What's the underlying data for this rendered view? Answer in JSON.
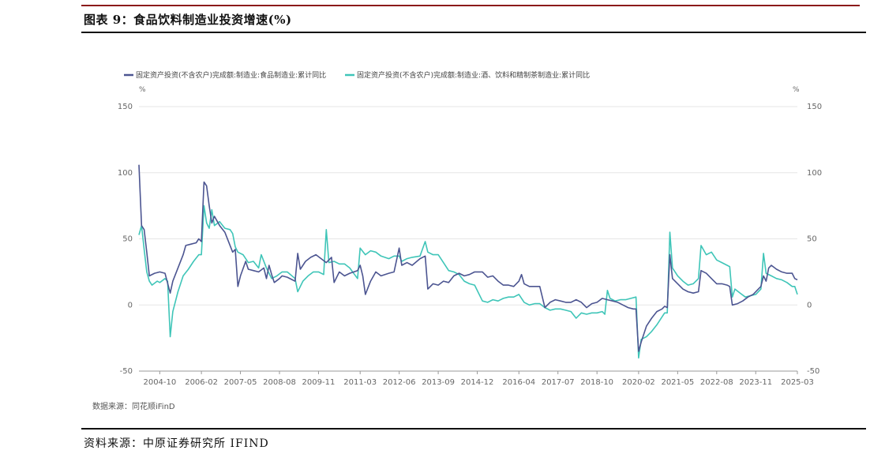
{
  "figure": {
    "title": "图表 9：食品饮料制造业投资增速(%)",
    "chart_source": "数据来源：同花顺iFinD",
    "footer_source": "资料来源：中原证券研究所 IFIND"
  },
  "colors": {
    "series1": "#4c5591",
    "series2": "#3fc5b8",
    "accent": "#8b1a1a",
    "axis_text": "#666666",
    "grid": "#e6e6e6"
  },
  "chart_data": {
    "type": "line",
    "title": "",
    "ylabel_left": "%",
    "ylabel_right": "%",
    "ylim": [
      -50,
      150
    ],
    "yticks": [
      -50,
      0,
      50,
      100,
      150
    ],
    "legend_position": "top-left",
    "grid": true,
    "x_tick_labels": [
      "2004-10",
      "2006-02",
      "2007-05",
      "2008-08",
      "2009-11",
      "2011-03",
      "2012-06",
      "2013-09",
      "2014-12",
      "2016-04",
      "2017-07",
      "2018-10",
      "2020-02",
      "2021-05",
      "2022-08",
      "2023-11",
      "2025-03"
    ],
    "x_range": [
      "2004-02",
      "2025-03"
    ],
    "series": [
      {
        "name": "固定资产投资(不含农户)完成额:制造业:食品制造业:累计同比",
        "points": [
          [
            "2004-02",
            106
          ],
          [
            "2004-03",
            60
          ],
          [
            "2004-04",
            57
          ],
          [
            "2004-05",
            40
          ],
          [
            "2004-06",
            22
          ],
          [
            "2004-08",
            24
          ],
          [
            "2004-10",
            25
          ],
          [
            "2004-12",
            24
          ],
          [
            "2005-02",
            9
          ],
          [
            "2005-03",
            18
          ],
          [
            "2005-05",
            28
          ],
          [
            "2005-07",
            38
          ],
          [
            "2005-08",
            45
          ],
          [
            "2005-10",
            46
          ],
          [
            "2005-12",
            47
          ],
          [
            "2006-01",
            50
          ],
          [
            "2006-02",
            48
          ],
          [
            "2006-03",
            93
          ],
          [
            "2006-04",
            90
          ],
          [
            "2006-05",
            75
          ],
          [
            "2006-06",
            62
          ],
          [
            "2006-07",
            67
          ],
          [
            "2006-09",
            60
          ],
          [
            "2006-11",
            55
          ],
          [
            "2007-01",
            45
          ],
          [
            "2007-02",
            40
          ],
          [
            "2007-03",
            42
          ],
          [
            "2007-04",
            14
          ],
          [
            "2007-05",
            22
          ],
          [
            "2007-07",
            33
          ],
          [
            "2007-08",
            27
          ],
          [
            "2007-10",
            26
          ],
          [
            "2007-12",
            25
          ],
          [
            "2008-02",
            28
          ],
          [
            "2008-03",
            20
          ],
          [
            "2008-04",
            30
          ],
          [
            "2008-05",
            23
          ],
          [
            "2008-06",
            17
          ],
          [
            "2008-08",
            20
          ],
          [
            "2008-09",
            22
          ],
          [
            "2008-11",
            21
          ],
          [
            "2009-02",
            18
          ],
          [
            "2009-03",
            39
          ],
          [
            "2009-04",
            27
          ],
          [
            "2009-06",
            33
          ],
          [
            "2009-08",
            36
          ],
          [
            "2009-10",
            38
          ],
          [
            "2009-12",
            35
          ],
          [
            "2010-02",
            32
          ],
          [
            "2010-04",
            36
          ],
          [
            "2010-05",
            17
          ],
          [
            "2010-07",
            25
          ],
          [
            "2010-09",
            22
          ],
          [
            "2010-11",
            24
          ],
          [
            "2011-02",
            26
          ],
          [
            "2011-03",
            30
          ],
          [
            "2011-04",
            22
          ],
          [
            "2011-05",
            8
          ],
          [
            "2011-07",
            18
          ],
          [
            "2011-09",
            25
          ],
          [
            "2011-11",
            22
          ],
          [
            "2012-02",
            24
          ],
          [
            "2012-04",
            25
          ],
          [
            "2012-06",
            43
          ],
          [
            "2012-07",
            30
          ],
          [
            "2012-09",
            32
          ],
          [
            "2012-11",
            30
          ],
          [
            "2013-02",
            35
          ],
          [
            "2013-04",
            37
          ],
          [
            "2013-05",
            12
          ],
          [
            "2013-07",
            16
          ],
          [
            "2013-09",
            15
          ],
          [
            "2013-11",
            18
          ],
          [
            "2014-01",
            17
          ],
          [
            "2014-03",
            22
          ],
          [
            "2014-05",
            24
          ],
          [
            "2014-07",
            22
          ],
          [
            "2014-09",
            23
          ],
          [
            "2014-11",
            25
          ],
          [
            "2015-02",
            25
          ],
          [
            "2015-04",
            21
          ],
          [
            "2015-06",
            22
          ],
          [
            "2015-08",
            18
          ],
          [
            "2015-10",
            15
          ],
          [
            "2015-12",
            15
          ],
          [
            "2016-02",
            14
          ],
          [
            "2016-04",
            18
          ],
          [
            "2016-05",
            23
          ],
          [
            "2016-06",
            16
          ],
          [
            "2016-08",
            14
          ],
          [
            "2016-10",
            14
          ],
          [
            "2016-12",
            14
          ],
          [
            "2017-02",
            -2
          ],
          [
            "2017-04",
            2
          ],
          [
            "2017-06",
            4
          ],
          [
            "2017-08",
            3
          ],
          [
            "2017-10",
            2
          ],
          [
            "2017-12",
            2
          ],
          [
            "2018-02",
            4
          ],
          [
            "2018-04",
            2
          ],
          [
            "2018-06",
            -2
          ],
          [
            "2018-08",
            1
          ],
          [
            "2018-10",
            2
          ],
          [
            "2018-12",
            5
          ],
          [
            "2019-02",
            4
          ],
          [
            "2019-04",
            3
          ],
          [
            "2019-06",
            2
          ],
          [
            "2019-08",
            0
          ],
          [
            "2019-10",
            -2
          ],
          [
            "2019-12",
            -3
          ],
          [
            "2020-01",
            -3
          ],
          [
            "2020-02",
            -35
          ],
          [
            "2020-03",
            -28
          ],
          [
            "2020-05",
            -16
          ],
          [
            "2020-07",
            -10
          ],
          [
            "2020-09",
            -5
          ],
          [
            "2020-11",
            -3
          ],
          [
            "2020-12",
            -1
          ],
          [
            "2021-01",
            -2
          ],
          [
            "2021-02",
            38
          ],
          [
            "2021-03",
            20
          ],
          [
            "2021-05",
            16
          ],
          [
            "2021-07",
            12
          ],
          [
            "2021-09",
            10
          ],
          [
            "2021-11",
            9
          ],
          [
            "2022-01",
            10
          ],
          [
            "2022-02",
            26
          ],
          [
            "2022-04",
            24
          ],
          [
            "2022-06",
            20
          ],
          [
            "2022-08",
            16
          ],
          [
            "2022-10",
            16
          ],
          [
            "2022-12",
            15
          ],
          [
            "2023-01",
            14
          ],
          [
            "2023-02",
            0
          ],
          [
            "2023-04",
            1
          ],
          [
            "2023-06",
            3
          ],
          [
            "2023-08",
            6
          ],
          [
            "2023-10",
            8
          ],
          [
            "2023-12",
            12
          ],
          [
            "2024-01",
            14
          ],
          [
            "2024-02",
            22
          ],
          [
            "2024-03",
            18
          ],
          [
            "2024-04",
            28
          ],
          [
            "2024-05",
            30
          ],
          [
            "2024-07",
            27
          ],
          [
            "2024-09",
            25
          ],
          [
            "2024-11",
            24
          ],
          [
            "2025-01",
            24
          ],
          [
            "2025-02",
            20
          ],
          [
            "2025-03",
            19
          ]
        ]
      },
      {
        "name": "固定资产投资(不含农户)完成额:制造业:酒、饮料和精制茶制造业:累计同比",
        "points": [
          [
            "2004-02",
            53
          ],
          [
            "2004-03",
            60
          ],
          [
            "2004-04",
            42
          ],
          [
            "2004-05",
            25
          ],
          [
            "2004-06",
            18
          ],
          [
            "2004-07",
            15
          ],
          [
            "2004-09",
            18
          ],
          [
            "2004-10",
            17
          ],
          [
            "2004-12",
            20
          ],
          [
            "2005-01",
            18
          ],
          [
            "2005-02",
            -24
          ],
          [
            "2005-03",
            -5
          ],
          [
            "2005-05",
            10
          ],
          [
            "2005-07",
            22
          ],
          [
            "2005-09",
            27
          ],
          [
            "2005-11",
            33
          ],
          [
            "2006-01",
            38
          ],
          [
            "2006-02",
            38
          ],
          [
            "2006-03",
            75
          ],
          [
            "2006-04",
            62
          ],
          [
            "2006-05",
            58
          ],
          [
            "2006-06",
            72
          ],
          [
            "2006-07",
            60
          ],
          [
            "2006-09",
            63
          ],
          [
            "2006-11",
            58
          ],
          [
            "2007-01",
            57
          ],
          [
            "2007-02",
            54
          ],
          [
            "2007-03",
            44
          ],
          [
            "2007-04",
            40
          ],
          [
            "2007-06",
            38
          ],
          [
            "2007-08",
            32
          ],
          [
            "2007-10",
            33
          ],
          [
            "2007-12",
            28
          ],
          [
            "2008-01",
            38
          ],
          [
            "2008-03",
            28
          ],
          [
            "2008-05",
            20
          ],
          [
            "2008-07",
            22
          ],
          [
            "2008-09",
            25
          ],
          [
            "2008-11",
            25
          ],
          [
            "2009-02",
            20
          ],
          [
            "2009-03",
            10
          ],
          [
            "2009-05",
            18
          ],
          [
            "2009-07",
            22
          ],
          [
            "2009-09",
            25
          ],
          [
            "2009-11",
            25
          ],
          [
            "2010-01",
            23
          ],
          [
            "2010-02",
            57
          ],
          [
            "2010-03",
            32
          ],
          [
            "2010-05",
            33
          ],
          [
            "2010-07",
            31
          ],
          [
            "2010-09",
            31
          ],
          [
            "2010-11",
            28
          ],
          [
            "2011-02",
            20
          ],
          [
            "2011-03",
            43
          ],
          [
            "2011-05",
            38
          ],
          [
            "2011-07",
            41
          ],
          [
            "2011-09",
            40
          ],
          [
            "2011-11",
            37
          ],
          [
            "2012-02",
            35
          ],
          [
            "2012-04",
            37
          ],
          [
            "2012-06",
            37
          ],
          [
            "2012-07",
            33
          ],
          [
            "2012-09",
            35
          ],
          [
            "2012-11",
            36
          ],
          [
            "2013-02",
            37
          ],
          [
            "2013-04",
            48
          ],
          [
            "2013-05",
            40
          ],
          [
            "2013-07",
            38
          ],
          [
            "2013-09",
            38
          ],
          [
            "2013-11",
            32
          ],
          [
            "2014-01",
            26
          ],
          [
            "2014-03",
            25
          ],
          [
            "2014-05",
            23
          ],
          [
            "2014-07",
            18
          ],
          [
            "2014-09",
            16
          ],
          [
            "2014-11",
            15
          ],
          [
            "2015-02",
            3
          ],
          [
            "2015-04",
            2
          ],
          [
            "2015-06",
            4
          ],
          [
            "2015-08",
            3
          ],
          [
            "2015-10",
            5
          ],
          [
            "2015-12",
            6
          ],
          [
            "2016-02",
            6
          ],
          [
            "2016-04",
            8
          ],
          [
            "2016-06",
            2
          ],
          [
            "2016-08",
            0
          ],
          [
            "2016-10",
            1
          ],
          [
            "2016-12",
            1
          ],
          [
            "2017-02",
            -2
          ],
          [
            "2017-04",
            -4
          ],
          [
            "2017-06",
            -3
          ],
          [
            "2017-08",
            -3
          ],
          [
            "2017-10",
            -4
          ],
          [
            "2017-12",
            -5
          ],
          [
            "2018-02",
            -10
          ],
          [
            "2018-04",
            -6
          ],
          [
            "2018-06",
            -7
          ],
          [
            "2018-08",
            -6
          ],
          [
            "2018-10",
            -6
          ],
          [
            "2018-12",
            -5
          ],
          [
            "2019-01",
            -7
          ],
          [
            "2019-02",
            11
          ],
          [
            "2019-03",
            5
          ],
          [
            "2019-05",
            3
          ],
          [
            "2019-07",
            4
          ],
          [
            "2019-09",
            4
          ],
          [
            "2019-11",
            5
          ],
          [
            "2020-01",
            6
          ],
          [
            "2020-02",
            -40
          ],
          [
            "2020-03",
            -26
          ],
          [
            "2020-05",
            -24
          ],
          [
            "2020-07",
            -20
          ],
          [
            "2020-09",
            -15
          ],
          [
            "2020-11",
            -9
          ],
          [
            "2020-12",
            -6
          ],
          [
            "2021-01",
            -6
          ],
          [
            "2021-02",
            55
          ],
          [
            "2021-03",
            28
          ],
          [
            "2021-05",
            22
          ],
          [
            "2021-07",
            18
          ],
          [
            "2021-09",
            15
          ],
          [
            "2021-11",
            16
          ],
          [
            "2022-01",
            20
          ],
          [
            "2022-02",
            45
          ],
          [
            "2022-04",
            38
          ],
          [
            "2022-06",
            40
          ],
          [
            "2022-08",
            34
          ],
          [
            "2022-10",
            32
          ],
          [
            "2022-12",
            30
          ],
          [
            "2023-01",
            29
          ],
          [
            "2023-02",
            6
          ],
          [
            "2023-03",
            12
          ],
          [
            "2023-05",
            9
          ],
          [
            "2023-07",
            6
          ],
          [
            "2023-09",
            7
          ],
          [
            "2023-11",
            8
          ],
          [
            "2024-01",
            12
          ],
          [
            "2024-02",
            39
          ],
          [
            "2024-03",
            24
          ],
          [
            "2024-05",
            22
          ],
          [
            "2024-07",
            20
          ],
          [
            "2024-09",
            19
          ],
          [
            "2024-11",
            17
          ],
          [
            "2025-01",
            14
          ],
          [
            "2025-02",
            14
          ],
          [
            "2025-03",
            8
          ]
        ]
      }
    ]
  }
}
